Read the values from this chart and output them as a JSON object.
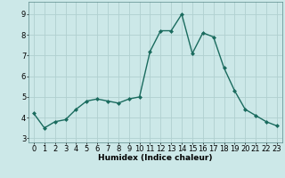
{
  "x": [
    0,
    1,
    2,
    3,
    4,
    5,
    6,
    7,
    8,
    9,
    10,
    11,
    12,
    13,
    14,
    15,
    16,
    17,
    18,
    19,
    20,
    21,
    22,
    23
  ],
  "y": [
    4.2,
    3.5,
    3.8,
    3.9,
    4.4,
    4.8,
    4.9,
    4.8,
    4.7,
    4.9,
    5.0,
    7.2,
    8.2,
    8.2,
    9.0,
    7.1,
    8.1,
    7.9,
    6.4,
    5.3,
    4.4,
    4.1,
    3.8,
    3.6
  ],
  "line_color": "#1a6b5e",
  "marker": "D",
  "marker_size": 2.0,
  "line_width": 1.0,
  "bg_color": "#cce8e8",
  "grid_color": "#b0d0d0",
  "xlabel": "Humidex (Indice chaleur)",
  "xlim": [
    -0.5,
    23.5
  ],
  "ylim": [
    2.8,
    9.6
  ],
  "yticks": [
    3,
    4,
    5,
    6,
    7,
    8,
    9
  ],
  "xticks": [
    0,
    1,
    2,
    3,
    4,
    5,
    6,
    7,
    8,
    9,
    10,
    11,
    12,
    13,
    14,
    15,
    16,
    17,
    18,
    19,
    20,
    21,
    22,
    23
  ],
  "xlabel_fontsize": 6.5,
  "tick_fontsize": 6.0
}
